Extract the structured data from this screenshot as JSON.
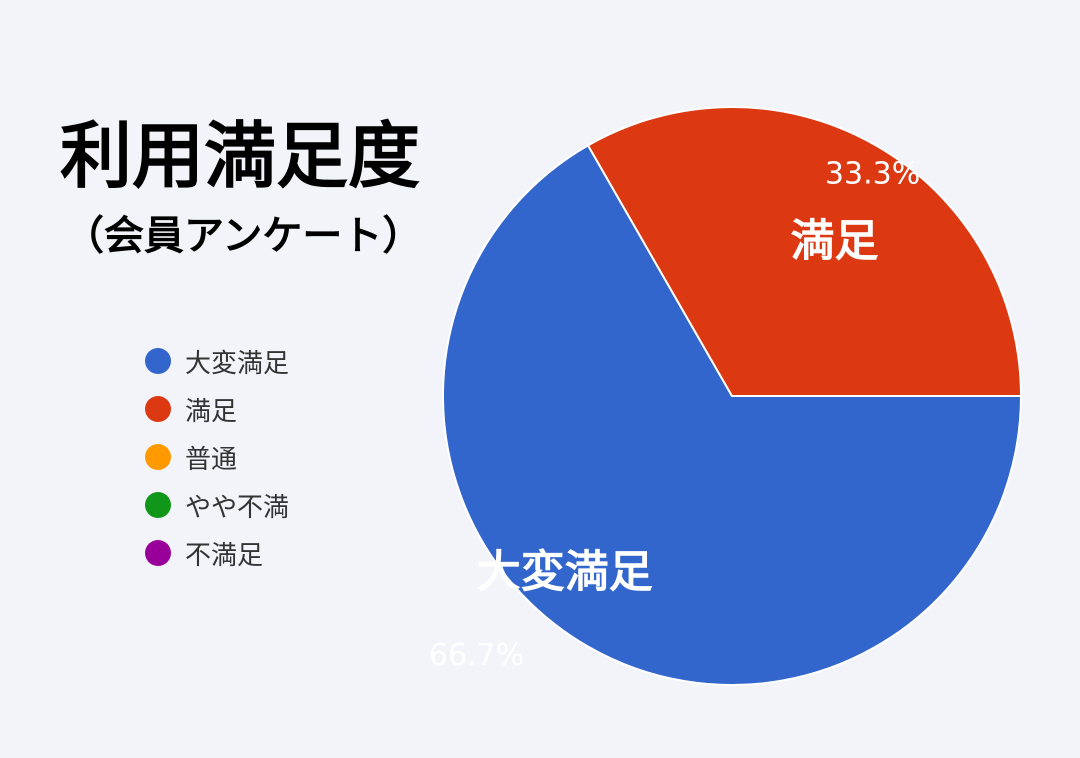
{
  "title": "利用満足度",
  "subtitle": "（会員アンケート）",
  "colors": {
    "background": "#f3f4fa"
  },
  "chart_data": {
    "type": "pie",
    "legend_position": "left",
    "categories": [
      "大変満足",
      "満足",
      "普通",
      "やや不満",
      "不満足"
    ],
    "colors": [
      "#3366cc",
      "#dc3912",
      "#ff9900",
      "#109618",
      "#990099"
    ],
    "values": [
      66.7,
      33.3,
      0,
      0,
      0
    ],
    "slice_labels": [
      {
        "category": "大変満足",
        "name": "大変満足",
        "percent": "66.7%"
      },
      {
        "category": "満足",
        "name": "満足",
        "percent": "33.3%"
      }
    ]
  }
}
